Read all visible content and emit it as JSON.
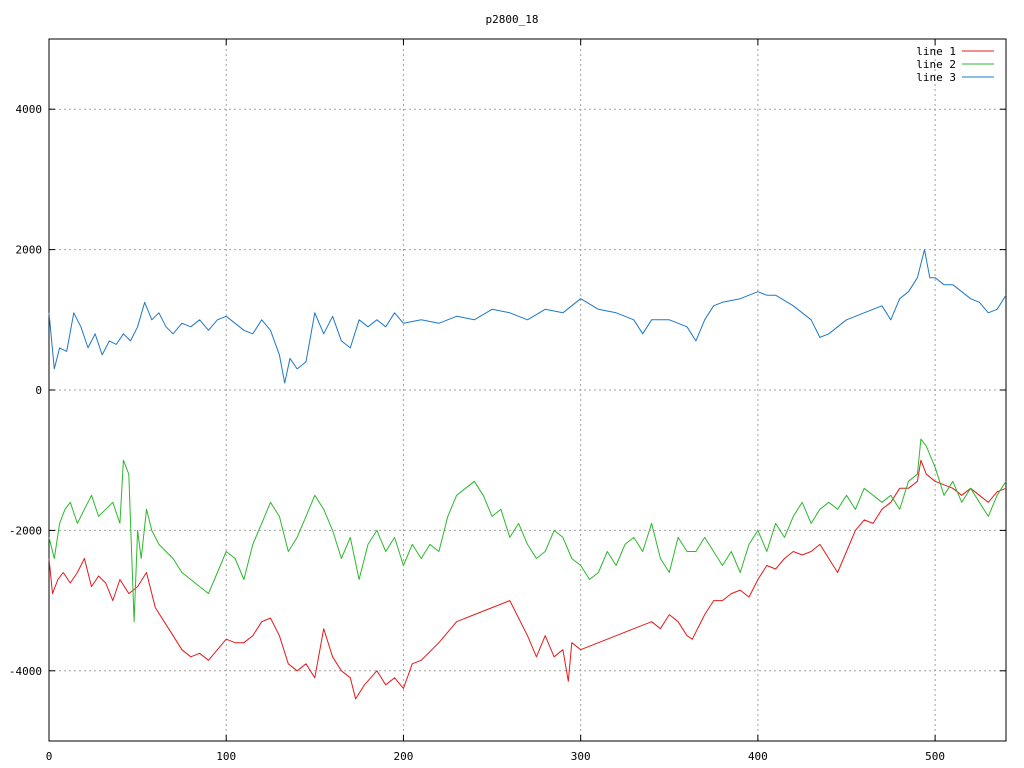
{
  "chart_data": {
    "type": "line",
    "title": "p2800_18",
    "xlabel": "",
    "ylabel": "",
    "xlim": [
      0,
      540
    ],
    "ylim": [
      -5000,
      5000
    ],
    "x_ticks": [
      0,
      100,
      200,
      300,
      400,
      500
    ],
    "y_ticks": [
      -4000,
      -2000,
      0,
      2000,
      4000
    ],
    "grid": true,
    "legend_position": "top-right",
    "series": [
      {
        "name": "line 1",
        "color": "#e41a1c",
        "x": [
          0,
          2,
          5,
          8,
          12,
          16,
          20,
          24,
          28,
          32,
          36,
          40,
          45,
          50,
          55,
          60,
          65,
          70,
          75,
          80,
          85,
          90,
          95,
          100,
          105,
          110,
          115,
          120,
          125,
          130,
          135,
          140,
          145,
          150,
          155,
          160,
          165,
          170,
          173,
          178,
          185,
          190,
          195,
          200,
          205,
          210,
          220,
          230,
          240,
          250,
          260,
          270,
          275,
          280,
          285,
          290,
          293,
          295,
          300,
          310,
          320,
          330,
          340,
          345,
          350,
          355,
          360,
          363,
          370,
          375,
          380,
          385,
          390,
          395,
          400,
          405,
          410,
          415,
          420,
          425,
          430,
          435,
          440,
          445,
          450,
          455,
          460,
          465,
          470,
          475,
          480,
          485,
          490,
          492,
          495,
          500,
          505,
          510,
          515,
          520,
          525,
          530,
          535,
          540
        ],
        "y": [
          -2400,
          -2900,
          -2700,
          -2600,
          -2750,
          -2600,
          -2400,
          -2800,
          -2650,
          -2750,
          -3000,
          -2700,
          -2900,
          -2800,
          -2600,
          -3100,
          -3300,
          -3500,
          -3700,
          -3800,
          -3750,
          -3850,
          -3700,
          -3550,
          -3600,
          -3600,
          -3500,
          -3300,
          -3250,
          -3500,
          -3900,
          -4000,
          -3900,
          -4100,
          -3400,
          -3800,
          -4000,
          -4100,
          -4400,
          -4200,
          -4000,
          -4200,
          -4100,
          -4250,
          -3900,
          -3850,
          -3600,
          -3300,
          -3200,
          -3100,
          -3000,
          -3500,
          -3800,
          -3500,
          -3800,
          -3700,
          -4150,
          -3600,
          -3700,
          -3600,
          -3500,
          -3400,
          -3300,
          -3400,
          -3200,
          -3300,
          -3500,
          -3550,
          -3200,
          -3000,
          -3000,
          -2900,
          -2850,
          -2950,
          -2700,
          -2500,
          -2550,
          -2400,
          -2300,
          -2350,
          -2300,
          -2200,
          -2400,
          -2600,
          -2300,
          -2000,
          -1850,
          -1900,
          -1700,
          -1600,
          -1400,
          -1400,
          -1300,
          -1000,
          -1200,
          -1300,
          -1350,
          -1400,
          -1500,
          -1400,
          -1500,
          -1600,
          -1450,
          -1400
        ]
      },
      {
        "name": "line 2",
        "color": "#2db82d",
        "x": [
          0,
          3,
          6,
          9,
          12,
          16,
          20,
          24,
          28,
          32,
          36,
          40,
          42,
          45,
          48,
          50,
          52,
          55,
          58,
          62,
          66,
          70,
          75,
          80,
          85,
          90,
          95,
          100,
          105,
          110,
          115,
          120,
          125,
          130,
          135,
          140,
          145,
          150,
          155,
          160,
          165,
          170,
          175,
          180,
          185,
          190,
          195,
          200,
          205,
          210,
          215,
          220,
          225,
          230,
          235,
          240,
          245,
          250,
          255,
          260,
          265,
          270,
          275,
          280,
          285,
          290,
          295,
          300,
          305,
          310,
          315,
          320,
          325,
          330,
          335,
          340,
          345,
          350,
          355,
          360,
          365,
          370,
          375,
          380,
          385,
          390,
          395,
          400,
          405,
          410,
          415,
          420,
          425,
          430,
          435,
          440,
          445,
          450,
          455,
          460,
          465,
          470,
          475,
          480,
          485,
          490,
          492,
          495,
          500,
          505,
          510,
          515,
          520,
          525,
          530,
          535,
          540
        ],
        "y": [
          -2100,
          -2400,
          -1900,
          -1700,
          -1600,
          -1900,
          -1700,
          -1500,
          -1800,
          -1700,
          -1600,
          -1900,
          -1000,
          -1200,
          -3300,
          -2000,
          -2400,
          -1700,
          -2000,
          -2200,
          -2300,
          -2400,
          -2600,
          -2700,
          -2800,
          -2900,
          -2600,
          -2300,
          -2400,
          -2700,
          -2200,
          -1900,
          -1600,
          -1800,
          -2300,
          -2100,
          -1800,
          -1500,
          -1700,
          -2000,
          -2400,
          -2100,
          -2700,
          -2200,
          -2000,
          -2300,
          -2100,
          -2500,
          -2200,
          -2400,
          -2200,
          -2300,
          -1800,
          -1500,
          -1400,
          -1300,
          -1500,
          -1800,
          -1700,
          -2100,
          -1900,
          -2200,
          -2400,
          -2300,
          -2000,
          -2100,
          -2400,
          -2500,
          -2700,
          -2600,
          -2300,
          -2500,
          -2200,
          -2100,
          -2300,
          -1900,
          -2400,
          -2600,
          -2100,
          -2300,
          -2300,
          -2100,
          -2300,
          -2500,
          -2300,
          -2600,
          -2200,
          -2000,
          -2300,
          -1900,
          -2100,
          -1800,
          -1600,
          -1900,
          -1700,
          -1600,
          -1700,
          -1500,
          -1700,
          -1400,
          -1500,
          -1600,
          -1500,
          -1700,
          -1300,
          -1200,
          -700,
          -800,
          -1100,
          -1500,
          -1300,
          -1600,
          -1400,
          -1600,
          -1800,
          -1500,
          -1300
        ]
      },
      {
        "name": "line 3",
        "color": "#1f78c8",
        "x": [
          0,
          3,
          6,
          10,
          14,
          18,
          22,
          26,
          30,
          34,
          38,
          42,
          46,
          50,
          54,
          58,
          62,
          66,
          70,
          75,
          80,
          85,
          90,
          95,
          100,
          105,
          110,
          115,
          120,
          125,
          130,
          133,
          136,
          140,
          145,
          150,
          155,
          160,
          165,
          170,
          175,
          180,
          185,
          190,
          195,
          200,
          210,
          220,
          230,
          240,
          250,
          260,
          270,
          280,
          290,
          300,
          310,
          320,
          330,
          335,
          340,
          350,
          360,
          365,
          370,
          375,
          380,
          390,
          400,
          405,
          410,
          420,
          430,
          435,
          440,
          445,
          450,
          460,
          470,
          475,
          480,
          485,
          490,
          494,
          497,
          500,
          505,
          510,
          515,
          520,
          525,
          530,
          535,
          540
        ],
        "y": [
          1100,
          300,
          600,
          550,
          1100,
          900,
          600,
          800,
          500,
          700,
          650,
          800,
          700,
          900,
          1250,
          1000,
          1100,
          900,
          800,
          950,
          900,
          1000,
          850,
          1000,
          1050,
          950,
          850,
          800,
          1000,
          850,
          500,
          100,
          450,
          300,
          400,
          1100,
          800,
          1050,
          700,
          600,
          1000,
          900,
          1000,
          900,
          1100,
          950,
          1000,
          950,
          1050,
          1000,
          1150,
          1100,
          1000,
          1150,
          1100,
          1300,
          1150,
          1100,
          1000,
          800,
          1000,
          1000,
          900,
          700,
          1000,
          1200,
          1250,
          1300,
          1400,
          1350,
          1350,
          1200,
          1000,
          750,
          800,
          900,
          1000,
          1100,
          1200,
          1000,
          1300,
          1400,
          1600,
          2000,
          1600,
          1600,
          1500,
          1500,
          1400,
          1300,
          1250,
          1100,
          1150,
          1350
        ]
      }
    ]
  }
}
